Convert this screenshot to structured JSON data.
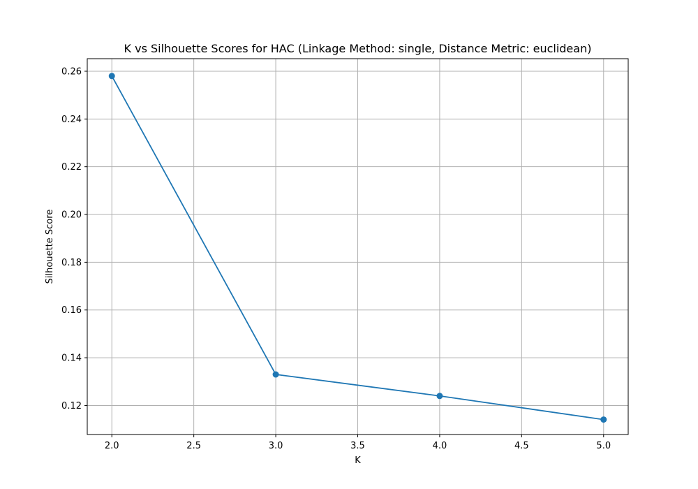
{
  "chart_data": {
    "type": "line",
    "title": "K vs Silhouette Scores for HAC (Linkage Method: single, Distance Metric: euclidean)",
    "xlabel": "K",
    "ylabel": "Silhouette Score",
    "x": [
      2,
      3,
      4,
      5
    ],
    "series": [
      {
        "values": [
          0.258,
          0.133,
          0.124,
          0.1141
        ],
        "color": "#1f77b4",
        "marker": "circle"
      }
    ],
    "xlim": [
      1.85,
      5.15
    ],
    "ylim": [
      0.10784,
      0.26526
    ],
    "xticks": [
      2.0,
      2.5,
      3.0,
      3.5,
      4.0,
      4.5,
      5.0
    ],
    "xtick_labels": [
      "2.0",
      "2.5",
      "3.0",
      "3.5",
      "4.0",
      "4.5",
      "5.0"
    ],
    "yticks": [
      0.12,
      0.14,
      0.16,
      0.18,
      0.2,
      0.22,
      0.24,
      0.26
    ],
    "ytick_labels": [
      "0.12",
      "0.14",
      "0.16",
      "0.18",
      "0.20",
      "0.22",
      "0.24",
      "0.26"
    ],
    "grid": true,
    "grid_color": "#b0b0b0",
    "axis_color": "#000000"
  }
}
